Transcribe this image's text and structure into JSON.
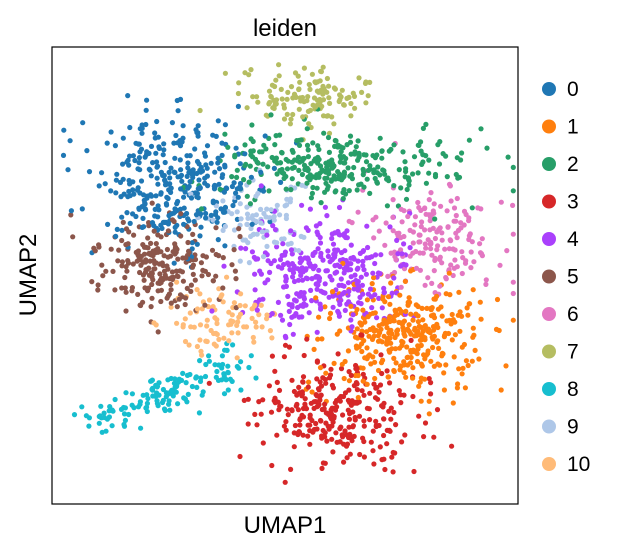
{
  "chart_data": {
    "type": "scatter",
    "title": "leiden",
    "xlabel": "UMAP1",
    "ylabel": "UMAP2",
    "xlim": [
      0,
      100
    ],
    "ylim": [
      0,
      100
    ],
    "grid": false,
    "legend_position": "right",
    "legend": [
      {
        "label": "0",
        "color": "#1f77b4"
      },
      {
        "label": "1",
        "color": "#ff7f0e"
      },
      {
        "label": "2",
        "color": "#279e68"
      },
      {
        "label": "3",
        "color": "#d62728"
      },
      {
        "label": "4",
        "color": "#aa40fc"
      },
      {
        "label": "5",
        "color": "#8c564b"
      },
      {
        "label": "6",
        "color": "#e377c2"
      },
      {
        "label": "7",
        "color": "#b5bd61"
      },
      {
        "label": "8",
        "color": "#17becf"
      },
      {
        "label": "9",
        "color": "#aec7e8"
      },
      {
        "label": "10",
        "color": "#ffbb78"
      }
    ],
    "clusters": [
      {
        "name": "0",
        "color": "#1f77b4",
        "center": [
          26,
          70
        ],
        "spread": [
          9,
          7
        ],
        "n": 340
      },
      {
        "name": "1",
        "color": "#ff7f0e",
        "center": [
          75,
          37
        ],
        "spread": [
          9,
          6
        ],
        "n": 340
      },
      {
        "name": "2",
        "color": "#279e68",
        "center": [
          60,
          74
        ],
        "spread": [
          13,
          4
        ],
        "n": 300
      },
      {
        "name": "3",
        "color": "#d62728",
        "center": [
          62,
          20
        ],
        "spread": [
          9,
          6
        ],
        "n": 290
      },
      {
        "name": "4",
        "color": "#aa40fc",
        "center": [
          59,
          50
        ],
        "spread": [
          9,
          6
        ],
        "n": 320
      },
      {
        "name": "5",
        "color": "#8c564b",
        "center": [
          23,
          52
        ],
        "spread": [
          7,
          5
        ],
        "n": 220
      },
      {
        "name": "6",
        "color": "#e377c2",
        "center": [
          82,
          58
        ],
        "spread": [
          7,
          6
        ],
        "n": 170
      },
      {
        "name": "7",
        "color": "#b5bd61",
        "center": [
          56,
          89
        ],
        "spread": [
          7,
          3
        ],
        "n": 130
      },
      {
        "name": "8",
        "color": "#17becf",
        "center": [
          30,
          25
        ],
        "spread": [
          11,
          4
        ],
        "n": 150
      },
      {
        "name": "9",
        "color": "#aec7e8",
        "center": [
          45,
          62
        ],
        "spread": [
          5,
          4
        ],
        "n": 90
      },
      {
        "name": "10",
        "color": "#ffbb78",
        "center": [
          36,
          40
        ],
        "spread": [
          6,
          4
        ],
        "n": 90
      }
    ]
  }
}
